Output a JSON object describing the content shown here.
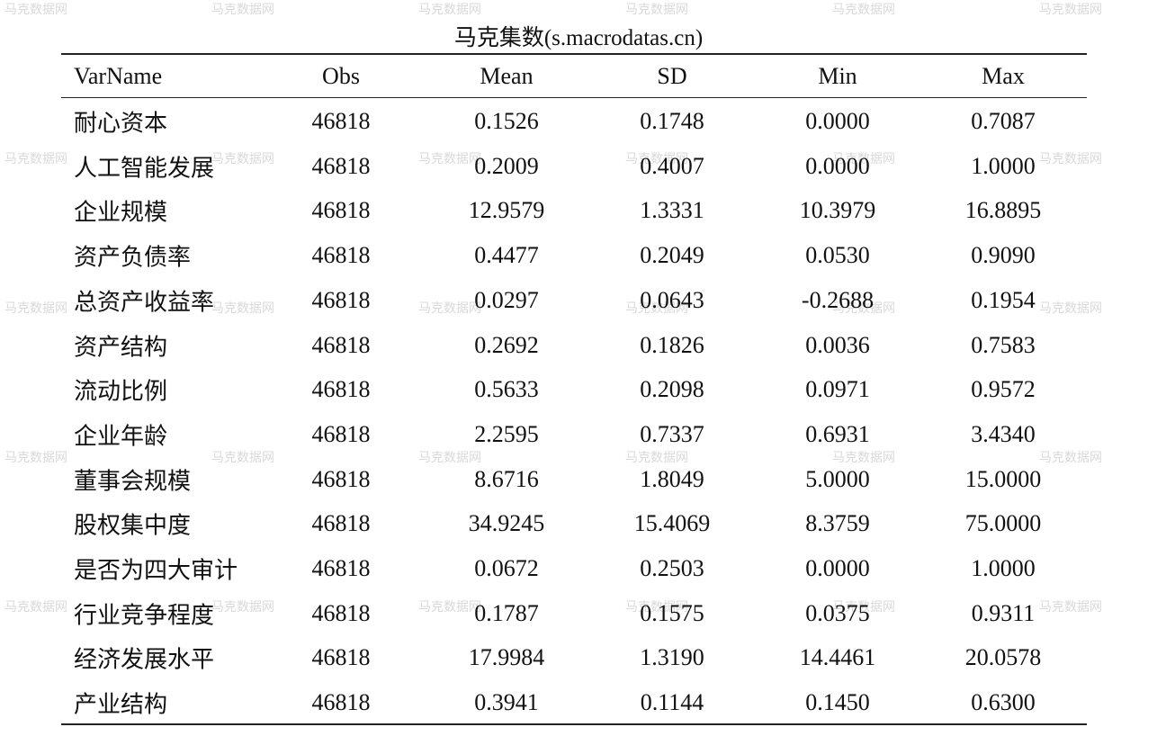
{
  "watermark": "马克数据网",
  "header": {
    "title": "马克集数(s.macrodatas.cn)"
  },
  "table": {
    "columns": [
      "VarName",
      "Obs",
      "Mean",
      "SD",
      "Min",
      "Max"
    ],
    "rows": [
      [
        "耐心资本",
        "46818",
        "0.1526",
        "0.1748",
        "0.0000",
        "0.7087"
      ],
      [
        "人工智能发展",
        "46818",
        "0.2009",
        "0.4007",
        "0.0000",
        "1.0000"
      ],
      [
        "企业规模",
        "46818",
        "12.9579",
        "1.3331",
        "10.3979",
        "16.8895"
      ],
      [
        "资产负债率",
        "46818",
        "0.4477",
        "0.2049",
        "0.0530",
        "0.9090"
      ],
      [
        "总资产收益率",
        "46818",
        "0.0297",
        "0.0643",
        "-0.2688",
        "0.1954"
      ],
      [
        "资产结构",
        "46818",
        "0.2692",
        "0.1826",
        "0.0036",
        "0.7583"
      ],
      [
        "流动比例",
        "46818",
        "0.5633",
        "0.2098",
        "0.0971",
        "0.9572"
      ],
      [
        "企业年龄",
        "46818",
        "2.2595",
        "0.7337",
        "0.6931",
        "3.4340"
      ],
      [
        "董事会规模",
        "46818",
        "8.6716",
        "1.8049",
        "5.0000",
        "15.0000"
      ],
      [
        "股权集中度",
        "46818",
        "34.9245",
        "15.4069",
        "8.3759",
        "75.0000"
      ],
      [
        "是否为四大审计",
        "46818",
        "0.0672",
        "0.2503",
        "0.0000",
        "1.0000"
      ],
      [
        "行业竞争程度",
        "46818",
        "0.1787",
        "0.1575",
        "0.0375",
        "0.9311"
      ],
      [
        "经济发展水平",
        "46818",
        "17.9984",
        "1.3190",
        "14.4461",
        "20.0578"
      ],
      [
        "产业结构",
        "46818",
        "0.3941",
        "0.1144",
        "0.1450",
        "0.6300"
      ]
    ]
  }
}
